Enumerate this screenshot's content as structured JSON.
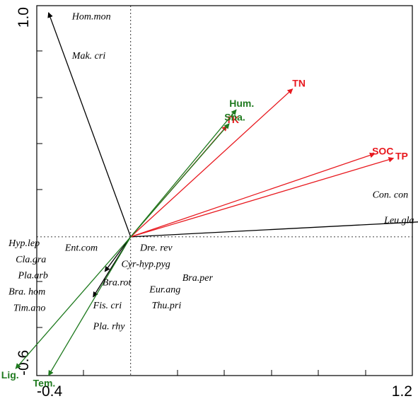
{
  "chart_data": {
    "type": "scatter",
    "subtype": "ordination-biplot",
    "title": "",
    "xlabel": "",
    "ylabel": "",
    "xlim": [
      -0.4,
      1.2
    ],
    "ylim": [
      -0.6,
      1.0
    ],
    "x_tick_labels": [
      "-0.4",
      "1.2"
    ],
    "y_tick_labels": [
      "-0.6",
      "1.0"
    ],
    "zero_reference_lines": true,
    "grid": false,
    "legend": "none",
    "colors": {
      "species_vectors": "#000000",
      "soil_nutrient_vectors": "#e8191f",
      "habitat_vectors": "#1f7a1f"
    },
    "vectors": [
      {
        "label": "Hom.mon",
        "x": -0.35,
        "y": 0.97,
        "color": "#000000",
        "show_label": false
      },
      {
        "label": "Con. con",
        "x": 1.33,
        "y": 0.07,
        "color": "#000000",
        "show_label": true
      },
      {
        "label": "Ent.com",
        "x": -0.11,
        "y": -0.15,
        "color": "#000000",
        "show_label": false
      },
      {
        "label": "Bra.rot",
        "x": -0.16,
        "y": -0.26,
        "color": "#000000",
        "show_label": false
      },
      {
        "label": "TN",
        "x": 0.69,
        "y": 0.64,
        "color": "#e8191f",
        "show_label": true
      },
      {
        "label": "SOC",
        "x": 1.04,
        "y": 0.36,
        "color": "#e8191f",
        "show_label": true
      },
      {
        "label": "TP",
        "x": 1.12,
        "y": 0.34,
        "color": "#e8191f",
        "show_label": true
      },
      {
        "label": "TK",
        "x": 0.41,
        "y": 0.48,
        "color": "#e8191f",
        "show_label": true
      },
      {
        "label": "Hum.",
        "x": 0.45,
        "y": 0.55,
        "color": "#1f7a1f",
        "show_label": true
      },
      {
        "label": "Sha.",
        "x": 0.42,
        "y": 0.49,
        "color": "#1f7a1f",
        "show_label": true
      },
      {
        "label": "Lig.",
        "x": -0.49,
        "y": -0.57,
        "color": "#1f7a1f",
        "show_label": true
      },
      {
        "label": "Tem.",
        "x": -0.35,
        "y": -0.6,
        "color": "#1f7a1f",
        "show_label": true
      }
    ],
    "species_labels": [
      {
        "label": "Hom.mon",
        "x": -0.25,
        "y": 0.94
      },
      {
        "label": "Mak. cri",
        "x": -0.25,
        "y": 0.77
      },
      {
        "label": "Con. con",
        "x": 1.03,
        "y": 0.17
      },
      {
        "label": "Leu.gla",
        "x": 1.08,
        "y": 0.06
      },
      {
        "label": "Hyp.lep",
        "x": -0.52,
        "y": -0.04
      },
      {
        "label": "Ent.com",
        "x": -0.28,
        "y": -0.06
      },
      {
        "label": "Dre. rev",
        "x": 0.04,
        "y": -0.06
      },
      {
        "label": "Cla.gra",
        "x": -0.49,
        "y": -0.11
      },
      {
        "label": "Cyr-hyp.pyg",
        "x": -0.04,
        "y": -0.13
      },
      {
        "label": "Pla.arb",
        "x": -0.48,
        "y": -0.18
      },
      {
        "label": "Bra.per",
        "x": 0.22,
        "y": -0.19
      },
      {
        "label": "Bra.rot",
        "x": -0.12,
        "y": -0.21
      },
      {
        "label": "Bra. hom",
        "x": -0.52,
        "y": -0.25
      },
      {
        "label": "Eur.ang",
        "x": 0.08,
        "y": -0.24
      },
      {
        "label": "Fis. cri",
        "x": -0.16,
        "y": -0.31
      },
      {
        "label": "Thu.pri",
        "x": 0.09,
        "y": -0.31
      },
      {
        "label": "Tim.ano",
        "x": -0.5,
        "y": -0.32
      },
      {
        "label": "Pla. rhy",
        "x": -0.16,
        "y": -0.4
      }
    ]
  }
}
